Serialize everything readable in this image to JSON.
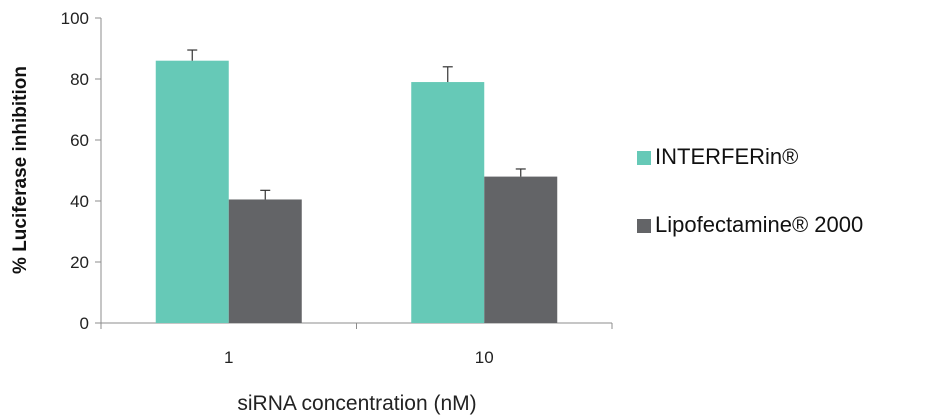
{
  "chart_data": {
    "type": "bar",
    "categories": [
      "1",
      "10"
    ],
    "series": [
      {
        "name": "INTERFERin®",
        "values": [
          86,
          79
        ],
        "errors": [
          3.5,
          5
        ],
        "color": "#66c9b7"
      },
      {
        "name": "Lipofectamine® 2000",
        "values": [
          40.5,
          48
        ],
        "errors": [
          3,
          2.5
        ],
        "color": "#636467"
      }
    ],
    "xlabel": "siRNA concentration (nM)",
    "ylabel": "% Luciferase inhibition",
    "ylim": [
      0,
      100
    ],
    "yticks": [
      "0",
      "20",
      "40",
      "60",
      "80",
      "100"
    ],
    "grid": false,
    "legend_position": "right"
  }
}
